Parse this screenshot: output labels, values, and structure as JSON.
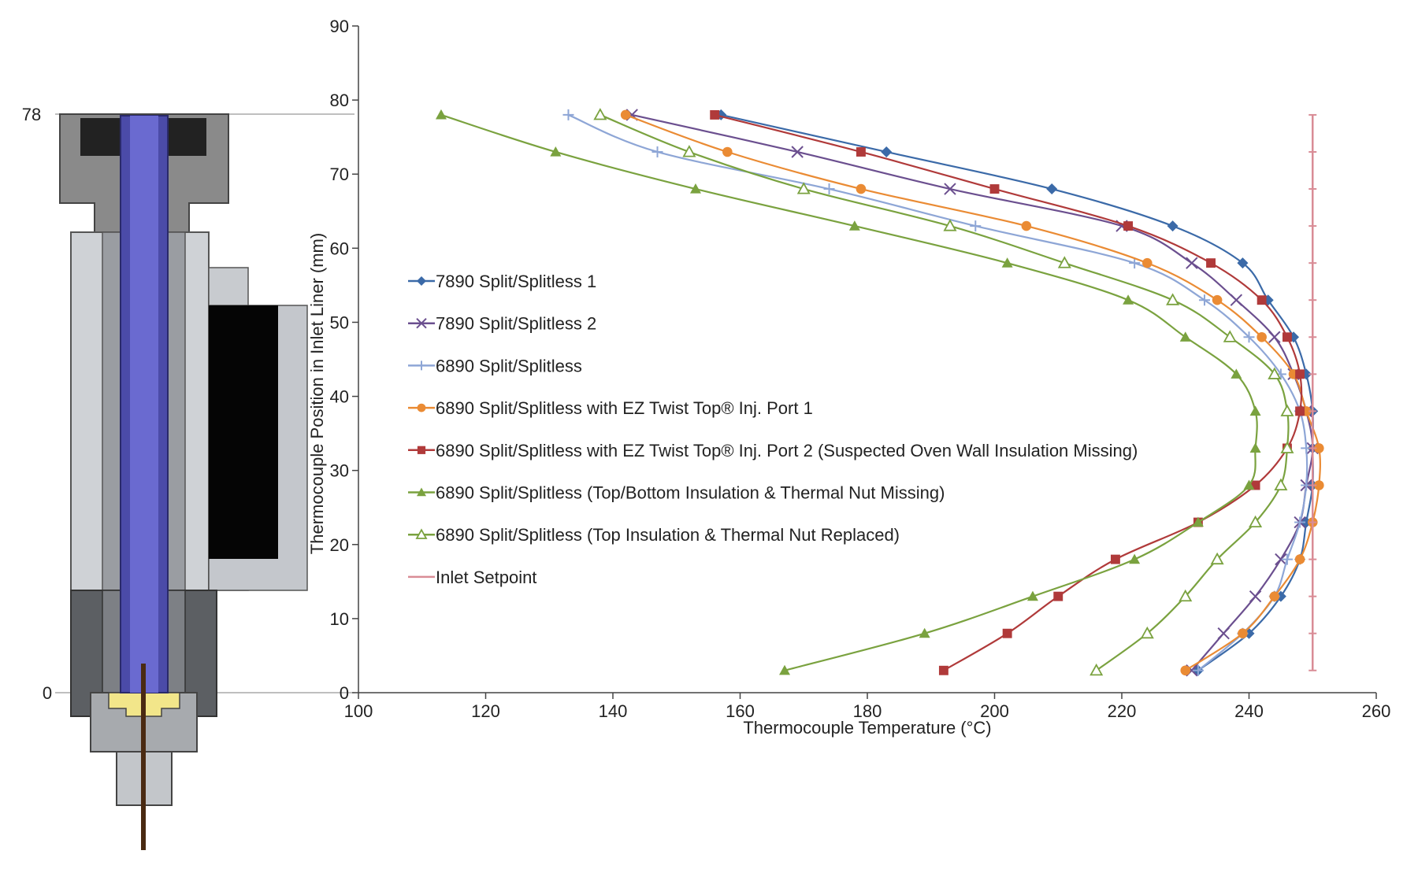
{
  "chart_data": {
    "type": "line",
    "title": "",
    "xlabel": "Thermocouple Temperature (°C)",
    "ylabel": "Thermocouple Position in Inlet Liner (mm)",
    "xlim": [
      100,
      260
    ],
    "ylim": [
      0,
      90
    ],
    "x_ticks": [
      "100",
      "120",
      "140",
      "160",
      "180",
      "200",
      "220",
      "240",
      "260"
    ],
    "y_ticks": [
      "0",
      "10",
      "20",
      "30",
      "40",
      "50",
      "60",
      "70",
      "80",
      "90"
    ],
    "diagram_labels": [
      "78",
      "0"
    ],
    "grid": false,
    "legend_position": "center-left",
    "series": [
      {
        "name": "7890 Split/Splitless 1",
        "color": "#3b6aa8",
        "marker": "diamond",
        "points": [
          [
            232,
            3
          ],
          [
            240,
            8
          ],
          [
            245,
            13
          ],
          [
            248,
            18
          ],
          [
            249,
            23
          ],
          [
            250,
            28
          ],
          [
            250,
            33
          ],
          [
            250,
            38
          ],
          [
            249,
            43
          ],
          [
            247,
            48
          ],
          [
            243,
            53
          ],
          [
            239,
            58
          ],
          [
            228,
            63
          ],
          [
            209,
            68
          ],
          [
            183,
            73
          ],
          [
            157,
            78
          ]
        ]
      },
      {
        "name": "7890 Split/Splitless 2",
        "color": "#6b4f8f",
        "marker": "x",
        "points": [
          [
            231,
            3
          ],
          [
            236,
            8
          ],
          [
            241,
            13
          ],
          [
            245,
            18
          ],
          [
            248,
            23
          ],
          [
            249,
            28
          ],
          [
            250,
            33
          ],
          [
            249,
            38
          ],
          [
            247,
            43
          ],
          [
            244,
            48
          ],
          [
            238,
            53
          ],
          [
            231,
            58
          ],
          [
            220,
            63
          ],
          [
            193,
            68
          ],
          [
            169,
            73
          ],
          [
            143,
            78
          ]
        ]
      },
      {
        "name": "6890 Split/Splitless",
        "color": "#8ea6d6",
        "marker": "plus",
        "points": [
          [
            232,
            3
          ],
          [
            239,
            8
          ],
          [
            244,
            13
          ],
          [
            246,
            18
          ],
          [
            248,
            23
          ],
          [
            249,
            28
          ],
          [
            249,
            33
          ],
          [
            248,
            38
          ],
          [
            245,
            43
          ],
          [
            240,
            48
          ],
          [
            233,
            53
          ],
          [
            222,
            58
          ],
          [
            197,
            63
          ],
          [
            174,
            68
          ],
          [
            147,
            73
          ],
          [
            133,
            78
          ]
        ]
      },
      {
        "name": "6890 Split/Splitless with EZ Twist Top® Inj. Port 1",
        "color": "#ea8b34",
        "marker": "circle",
        "points": [
          [
            230,
            3
          ],
          [
            239,
            8
          ],
          [
            244,
            13
          ],
          [
            248,
            18
          ],
          [
            250,
            23
          ],
          [
            251,
            28
          ],
          [
            251,
            33
          ],
          [
            249,
            38
          ],
          [
            247,
            43
          ],
          [
            242,
            48
          ],
          [
            235,
            53
          ],
          [
            224,
            58
          ],
          [
            205,
            63
          ],
          [
            179,
            68
          ],
          [
            158,
            73
          ],
          [
            142,
            78
          ]
        ]
      },
      {
        "name": "6890 Split/Splitless with EZ Twist Top® Inj. Port 2 (Suspected Oven Wall Insulation Missing)",
        "color": "#b03a3a",
        "marker": "square",
        "points": [
          [
            192,
            3
          ],
          [
            202,
            8
          ],
          [
            210,
            13
          ],
          [
            219,
            18
          ],
          [
            232,
            23
          ],
          [
            241,
            28
          ],
          [
            246,
            33
          ],
          [
            248,
            38
          ],
          [
            248,
            43
          ],
          [
            246,
            48
          ],
          [
            242,
            53
          ],
          [
            234,
            58
          ],
          [
            221,
            63
          ],
          [
            200,
            68
          ],
          [
            179,
            73
          ],
          [
            156,
            78
          ]
        ]
      },
      {
        "name": "6890 Split/Splitless (Top/Bottom Insulation & Thermal Nut Missing)",
        "color": "#7aa23f",
        "marker": "triangle",
        "points": [
          [
            167,
            3
          ],
          [
            189,
            8
          ],
          [
            206,
            13
          ],
          [
            222,
            18
          ],
          [
            232,
            23
          ],
          [
            240,
            28
          ],
          [
            241,
            33
          ],
          [
            241,
            38
          ],
          [
            238,
            43
          ],
          [
            230,
            48
          ],
          [
            221,
            53
          ],
          [
            202,
            58
          ],
          [
            178,
            63
          ],
          [
            153,
            68
          ],
          [
            131,
            73
          ],
          [
            113,
            78
          ]
        ]
      },
      {
        "name": "6890 Split/Splitless (Top Insulation & Thermal Nut Replaced)",
        "color": "#7aa23f",
        "marker": "triangle-open",
        "points": [
          [
            216,
            3
          ],
          [
            224,
            8
          ],
          [
            230,
            13
          ],
          [
            235,
            18
          ],
          [
            241,
            23
          ],
          [
            245,
            28
          ],
          [
            246,
            33
          ],
          [
            246,
            38
          ],
          [
            244,
            43
          ],
          [
            237,
            48
          ],
          [
            228,
            53
          ],
          [
            211,
            58
          ],
          [
            193,
            63
          ],
          [
            170,
            68
          ],
          [
            152,
            73
          ],
          [
            138,
            78
          ]
        ]
      },
      {
        "name": "Inlet Setpoint",
        "color": "#d98c96",
        "marker": "dash",
        "points": [
          [
            250,
            3
          ],
          [
            250,
            8
          ],
          [
            250,
            13
          ],
          [
            250,
            18
          ],
          [
            250,
            23
          ],
          [
            250,
            28
          ],
          [
            250,
            33
          ],
          [
            250,
            38
          ],
          [
            250,
            43
          ],
          [
            250,
            48
          ],
          [
            250,
            53
          ],
          [
            250,
            58
          ],
          [
            250,
            63
          ],
          [
            250,
            68
          ],
          [
            250,
            73
          ],
          [
            250,
            78
          ]
        ]
      }
    ]
  }
}
